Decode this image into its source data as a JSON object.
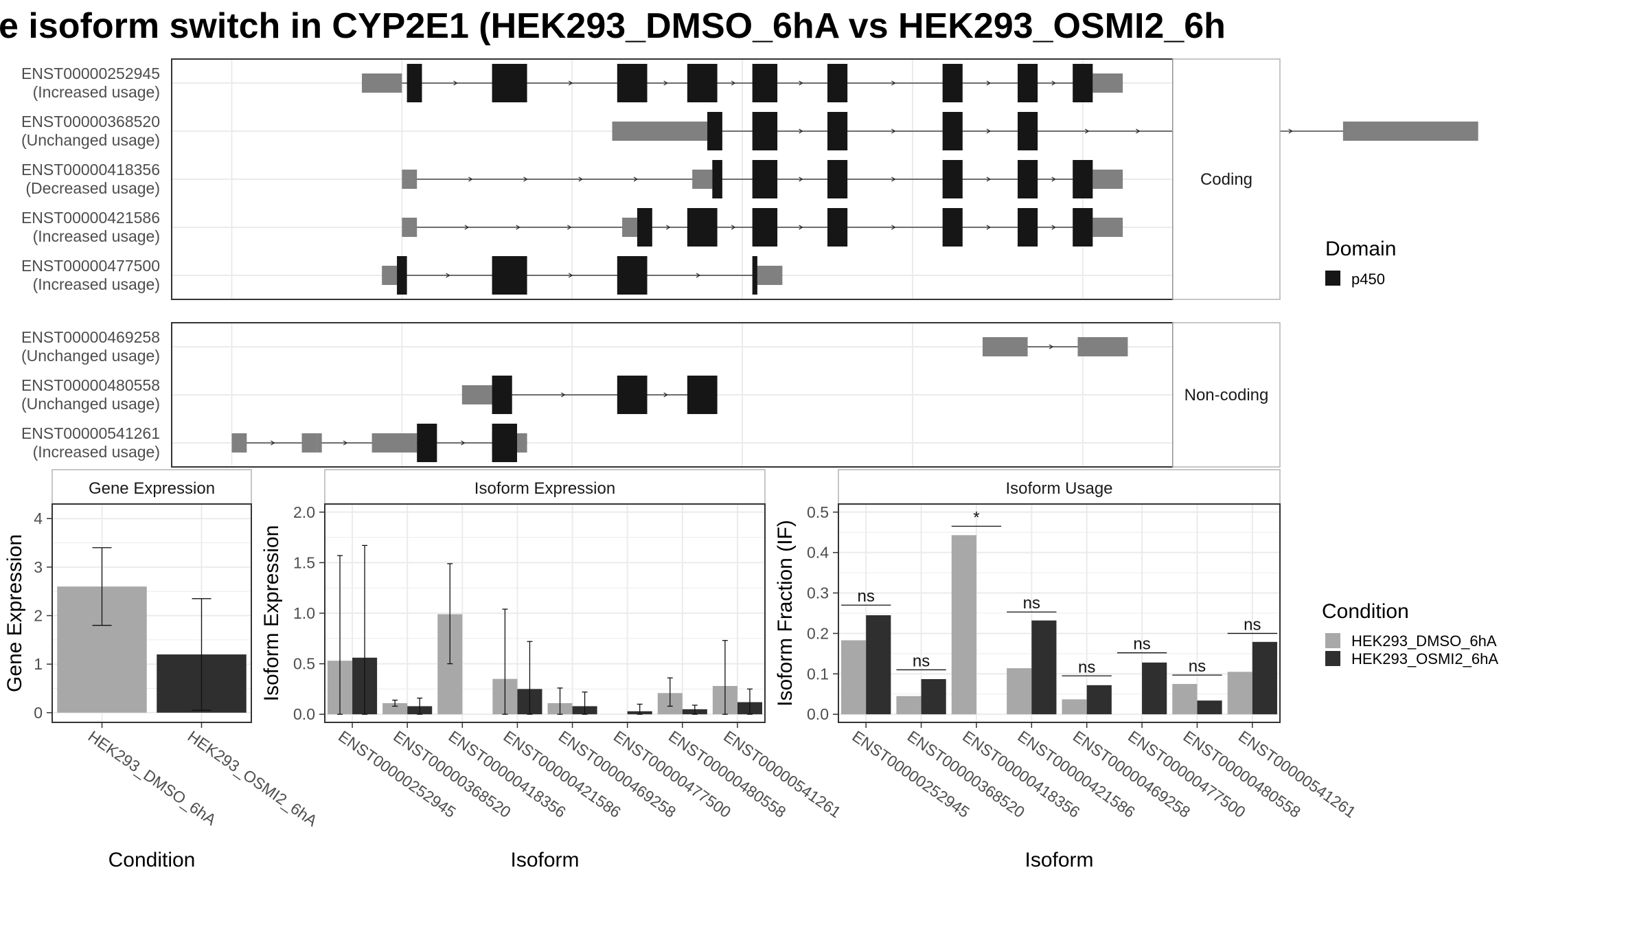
{
  "title": "e isoform switch in CYP2E1 (HEK293_DMSO_6hA vs HEK293_OSMI2_6h",
  "colors": {
    "domain": "#161616",
    "utr": "#808080",
    "dmso": "#a8a8a8",
    "osmi2": "#2f2f2f",
    "panel_border": "#333333",
    "strip_border": "#b3b3b3",
    "grid": "#ebebeb"
  },
  "structure": {
    "coding_label": "Coding",
    "noncoding_label": "Non-coding",
    "legend_title": "Domain",
    "legend_items": [
      {
        "label": "p450"
      }
    ],
    "xlim": [
      1,
      101
    ],
    "gridlines": [
      7,
      24,
      41,
      58,
      75,
      92
    ],
    "coding": [
      {
        "id": "ENST00000252945",
        "status": "(Increased usage)",
        "utr": [
          [
            20,
            24
          ],
          [
            93,
            96
          ]
        ],
        "domain": [
          [
            24.5,
            26
          ],
          [
            33,
            36.5
          ],
          [
            45.5,
            48.5
          ],
          [
            52.5,
            55.5
          ],
          [
            59,
            61.5
          ],
          [
            66.5,
            68.5
          ],
          [
            78,
            80
          ],
          [
            85.5,
            87.5
          ],
          [
            91,
            93
          ]
        ]
      },
      {
        "id": "ENST00000368520",
        "status": "(Unchanged usage)",
        "utr": [
          [
            45,
            54.5
          ],
          [
            118,
            131.5
          ]
        ],
        "domain": [
          [
            54.5,
            56
          ],
          [
            59,
            61.5
          ],
          [
            66.5,
            68.5
          ],
          [
            78,
            80
          ],
          [
            85.5,
            87.5
          ]
        ]
      },
      {
        "id": "ENST00000418356",
        "status": "(Decreased usage)",
        "utr": [
          [
            24,
            25.5
          ],
          [
            53,
            55
          ],
          [
            93,
            96
          ]
        ],
        "domain": [
          [
            55,
            56
          ],
          [
            59,
            61.5
          ],
          [
            66.5,
            68.5
          ],
          [
            78,
            80
          ],
          [
            85.5,
            87.5
          ],
          [
            91,
            93
          ]
        ]
      },
      {
        "id": "ENST00000421586",
        "status": "(Increased usage)",
        "utr": [
          [
            24,
            25.5
          ],
          [
            46,
            47.5
          ],
          [
            93,
            96
          ]
        ],
        "domain": [
          [
            47.5,
            49
          ],
          [
            52.5,
            55.5
          ],
          [
            59,
            61.5
          ],
          [
            66.5,
            68.5
          ],
          [
            78,
            80
          ],
          [
            85.5,
            87.5
          ],
          [
            91,
            93
          ]
        ]
      },
      {
        "id": "ENST00000477500",
        "status": "(Increased usage)",
        "utr": [
          [
            22,
            23.5
          ],
          [
            59.5,
            62
          ]
        ],
        "domain": [
          [
            23.5,
            24.5
          ],
          [
            33,
            36.5
          ],
          [
            45.5,
            48.5
          ],
          [
            59,
            59.5
          ]
        ]
      }
    ],
    "noncoding": [
      {
        "id": "ENST00000469258",
        "status": "(Unchanged usage)",
        "utr": [
          [
            82,
            86.5
          ],
          [
            91.5,
            96.5
          ]
        ],
        "domain": []
      },
      {
        "id": "ENST00000480558",
        "status": "(Unchanged usage)",
        "utr": [
          [
            30,
            33
          ]
        ],
        "domain": [
          [
            33,
            35
          ],
          [
            45.5,
            48.5
          ],
          [
            52.5,
            55.5
          ]
        ]
      },
      {
        "id": "ENST00000541261",
        "status": "(Increased usage)",
        "utr": [
          [
            7,
            8.5
          ],
          [
            14,
            15.5
          ],
          [
            15.5,
            16
          ],
          [
            21,
            25.5
          ],
          [
            33,
            36.5
          ]
        ],
        "domain": [
          [
            25.5,
            27.5
          ],
          [
            33,
            35.5
          ]
        ]
      }
    ]
  },
  "chart_data": [
    {
      "type": "bar",
      "title": "Gene Expression",
      "xlabel": "Condition",
      "ylabel": "Gene Expression",
      "categories": [
        "HEK293_DMSO_6hA",
        "HEK293_OSMI2_6hA"
      ],
      "values": [
        2.6,
        1.2
      ],
      "error_low": [
        1.8,
        0.05
      ],
      "error_high": [
        3.4,
        2.35
      ],
      "ylim": [
        -0.2,
        4.3
      ],
      "yticks": [
        "0",
        "1",
        "2",
        "3",
        "4"
      ]
    },
    {
      "type": "bar",
      "title": "Isoform Expression",
      "xlabel": "Isoform",
      "ylabel": "Isoform Expression",
      "categories": [
        "ENST00000252945",
        "ENST00000368520",
        "ENST00000418356",
        "ENST00000421586",
        "ENST00000469258",
        "ENST00000477500",
        "ENST00000480558",
        "ENST00000541261"
      ],
      "ylim": [
        -0.08,
        2.08
      ],
      "yticks": [
        "0.0",
        "0.5",
        "1.0",
        "1.5",
        "2.0"
      ],
      "series": [
        {
          "name": "HEK293_DMSO_6hA",
          "values": [
            0.53,
            0.11,
            0.99,
            0.35,
            0.11,
            0.0,
            0.21,
            0.28
          ],
          "error_low": [
            0.0,
            0.08,
            0.5,
            0.0,
            0.0,
            null,
            0.08,
            0.0
          ],
          "error_high": [
            1.57,
            0.14,
            1.49,
            1.04,
            0.26,
            null,
            0.36,
            0.73
          ]
        },
        {
          "name": "HEK293_OSMI2_6hA",
          "values": [
            0.56,
            0.08,
            0.0,
            0.25,
            0.08,
            0.03,
            0.05,
            0.12
          ],
          "error_low": [
            0.0,
            0.0,
            null,
            0.0,
            0.0,
            0.0,
            0.0,
            0.0
          ],
          "error_high": [
            1.67,
            0.16,
            null,
            0.72,
            0.22,
            0.1,
            0.09,
            0.25
          ]
        }
      ]
    },
    {
      "type": "bar",
      "title": "Isoform Usage",
      "xlabel": "Isoform",
      "ylabel": "Isoform Fraction (IF)",
      "categories": [
        "ENST00000252945",
        "ENST00000368520",
        "ENST00000418356",
        "ENST00000421586",
        "ENST00000469258",
        "ENST00000477500",
        "ENST00000480558",
        "ENST00000541261"
      ],
      "ylim": [
        -0.02,
        0.52
      ],
      "yticks": [
        "0.0",
        "0.1",
        "0.2",
        "0.3",
        "0.4",
        "0.5"
      ],
      "series": [
        {
          "name": "HEK293_DMSO_6hA",
          "values": [
            0.183,
            0.045,
            0.443,
            0.114,
            0.037,
            0.0,
            0.075,
            0.105
          ]
        },
        {
          "name": "HEK293_OSMI2_6hA",
          "values": [
            0.245,
            0.087,
            0.0,
            0.232,
            0.072,
            0.128,
            0.034,
            0.179
          ]
        }
      ],
      "significance": [
        "ns",
        "ns",
        "*",
        "ns",
        "ns",
        "ns",
        "ns",
        "ns"
      ],
      "significance_y": [
        0.27,
        0.11,
        0.465,
        0.253,
        0.095,
        0.152,
        0.097,
        0.2
      ]
    }
  ],
  "condition_legend": {
    "title": "Condition",
    "items": [
      {
        "label": "HEK293_DMSO_6hA"
      },
      {
        "label": "HEK293_OSMI2_6hA"
      }
    ]
  }
}
